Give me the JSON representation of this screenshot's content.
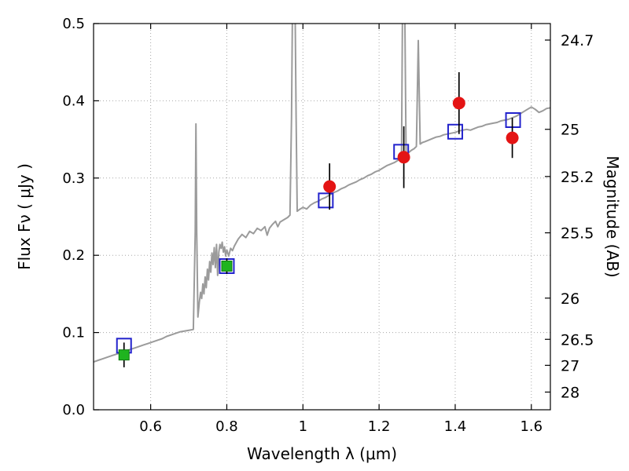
{
  "chart_data": {
    "type": "line",
    "title": "",
    "xlabel": "Wavelength  λ (μm)",
    "ylabel": "Flux  Fν  ( μJy )",
    "xlim": [
      0.45,
      1.65
    ],
    "ylim": [
      0.0,
      0.5
    ],
    "grid": true,
    "x_ticks": [
      0.6,
      0.8,
      1.0,
      1.2,
      1.4,
      1.6
    ],
    "x_tick_labels": [
      "0.6",
      "0.8",
      "1",
      "1.2",
      "1.4",
      "1.6"
    ],
    "y_ticks": [
      0.0,
      0.1,
      0.2,
      0.3,
      0.4,
      0.5
    ],
    "y_tick_labels": [
      "0.0",
      "0.1",
      "0.2",
      "0.3",
      "0.4",
      "0.5"
    ],
    "right_axis": {
      "label": "Magnitude (AB)",
      "mag_zeropoint": 23.9,
      "tick_magnitudes": [
        24.7,
        25,
        25.2,
        25.5,
        26,
        26.5,
        27,
        28
      ],
      "tick_labels": [
        "24.7",
        "25",
        "25.2",
        "25.5",
        "26",
        "26.5",
        "27",
        "28"
      ]
    },
    "series": [
      {
        "name": "model-spectrum",
        "type": "line",
        "color": "#9b9b9b",
        "width": 2,
        "points": [
          [
            0.45,
            0.062
          ],
          [
            0.462,
            0.064
          ],
          [
            0.474,
            0.066
          ],
          [
            0.486,
            0.068
          ],
          [
            0.498,
            0.07
          ],
          [
            0.51,
            0.072
          ],
          [
            0.522,
            0.074
          ],
          [
            0.534,
            0.076
          ],
          [
            0.546,
            0.078
          ],
          [
            0.558,
            0.08
          ],
          [
            0.57,
            0.082
          ],
          [
            0.582,
            0.084
          ],
          [
            0.594,
            0.086
          ],
          [
            0.606,
            0.088
          ],
          [
            0.618,
            0.09
          ],
          [
            0.63,
            0.092
          ],
          [
            0.642,
            0.095
          ],
          [
            0.654,
            0.097
          ],
          [
            0.666,
            0.099
          ],
          [
            0.678,
            0.101
          ],
          [
            0.69,
            0.102
          ],
          [
            0.702,
            0.103
          ],
          [
            0.712,
            0.104
          ],
          [
            0.717,
            0.23
          ],
          [
            0.719,
            0.37
          ],
          [
            0.721,
            0.23
          ],
          [
            0.724,
            0.12
          ],
          [
            0.728,
            0.14
          ],
          [
            0.731,
            0.152
          ],
          [
            0.734,
            0.144
          ],
          [
            0.737,
            0.163
          ],
          [
            0.74,
            0.15
          ],
          [
            0.743,
            0.172
          ],
          [
            0.746,
            0.158
          ],
          [
            0.749,
            0.182
          ],
          [
            0.752,
            0.168
          ],
          [
            0.755,
            0.192
          ],
          [
            0.758,
            0.178
          ],
          [
            0.761,
            0.203
          ],
          [
            0.764,
            0.188
          ],
          [
            0.767,
            0.21
          ],
          [
            0.77,
            0.184
          ],
          [
            0.773,
            0.214
          ],
          [
            0.776,
            0.174
          ],
          [
            0.779,
            0.204
          ],
          [
            0.782,
            0.214
          ],
          [
            0.785,
            0.209
          ],
          [
            0.788,
            0.217
          ],
          [
            0.791,
            0.204
          ],
          [
            0.794,
            0.211
          ],
          [
            0.797,
            0.199
          ],
          [
            0.8,
            0.207
          ],
          [
            0.805,
            0.199
          ],
          [
            0.81,
            0.209
          ],
          [
            0.815,
            0.206
          ],
          [
            0.82,
            0.212
          ],
          [
            0.83,
            0.221
          ],
          [
            0.84,
            0.227
          ],
          [
            0.85,
            0.223
          ],
          [
            0.86,
            0.231
          ],
          [
            0.87,
            0.228
          ],
          [
            0.88,
            0.235
          ],
          [
            0.89,
            0.232
          ],
          [
            0.9,
            0.237
          ],
          [
            0.906,
            0.226
          ],
          [
            0.912,
            0.235
          ],
          [
            0.92,
            0.24
          ],
          [
            0.928,
            0.244
          ],
          [
            0.934,
            0.237
          ],
          [
            0.94,
            0.243
          ],
          [
            0.95,
            0.246
          ],
          [
            0.96,
            0.249
          ],
          [
            0.966,
            0.252
          ],
          [
            0.97,
            0.38
          ],
          [
            0.973,
            0.545
          ],
          [
            0.979,
            0.545
          ],
          [
            0.982,
            0.38
          ],
          [
            0.985,
            0.257
          ],
          [
            0.99,
            0.259
          ],
          [
            1.0,
            0.262
          ],
          [
            1.01,
            0.26
          ],
          [
            1.02,
            0.265
          ],
          [
            1.03,
            0.268
          ],
          [
            1.04,
            0.27
          ],
          [
            1.05,
            0.273
          ],
          [
            1.06,
            0.275
          ],
          [
            1.07,
            0.278
          ],
          [
            1.08,
            0.281
          ],
          [
            1.09,
            0.283
          ],
          [
            1.1,
            0.286
          ],
          [
            1.11,
            0.288
          ],
          [
            1.12,
            0.291
          ],
          [
            1.13,
            0.293
          ],
          [
            1.14,
            0.295
          ],
          [
            1.15,
            0.298
          ],
          [
            1.16,
            0.3
          ],
          [
            1.17,
            0.303
          ],
          [
            1.18,
            0.305
          ],
          [
            1.19,
            0.308
          ],
          [
            1.2,
            0.31
          ],
          [
            1.21,
            0.313
          ],
          [
            1.22,
            0.316
          ],
          [
            1.23,
            0.318
          ],
          [
            1.24,
            0.32
          ],
          [
            1.25,
            0.323
          ],
          [
            1.256,
            0.326
          ],
          [
            1.259,
            0.33
          ],
          [
            1.262,
            0.545
          ],
          [
            1.267,
            0.545
          ],
          [
            1.271,
            0.33
          ],
          [
            1.278,
            0.333
          ],
          [
            1.285,
            0.336
          ],
          [
            1.292,
            0.338
          ],
          [
            1.298,
            0.341
          ],
          [
            1.303,
            0.478
          ],
          [
            1.308,
            0.344
          ],
          [
            1.314,
            0.346
          ],
          [
            1.32,
            0.347
          ],
          [
            1.33,
            0.349
          ],
          [
            1.34,
            0.351
          ],
          [
            1.35,
            0.353
          ],
          [
            1.36,
            0.354
          ],
          [
            1.37,
            0.356
          ],
          [
            1.38,
            0.357
          ],
          [
            1.39,
            0.358
          ],
          [
            1.4,
            0.359
          ],
          [
            1.41,
            0.361
          ],
          [
            1.42,
            0.362
          ],
          [
            1.43,
            0.363
          ],
          [
            1.44,
            0.362
          ],
          [
            1.45,
            0.364
          ],
          [
            1.46,
            0.366
          ],
          [
            1.47,
            0.367
          ],
          [
            1.48,
            0.369
          ],
          [
            1.49,
            0.37
          ],
          [
            1.5,
            0.371
          ],
          [
            1.51,
            0.372
          ],
          [
            1.52,
            0.374
          ],
          [
            1.53,
            0.375
          ],
          [
            1.54,
            0.376
          ],
          [
            1.55,
            0.378
          ],
          [
            1.56,
            0.38
          ],
          [
            1.57,
            0.383
          ],
          [
            1.58,
            0.386
          ],
          [
            1.59,
            0.389
          ],
          [
            1.6,
            0.392
          ],
          [
            1.61,
            0.389
          ],
          [
            1.62,
            0.385
          ],
          [
            1.63,
            0.387
          ],
          [
            1.64,
            0.39
          ],
          [
            1.65,
            0.391
          ]
        ]
      },
      {
        "name": "model-photometry",
        "type": "scatter",
        "marker": "open-square",
        "color": "#2222cc",
        "size": 18,
        "x": [
          0.53,
          0.8,
          1.06,
          1.258,
          1.4,
          1.552
        ],
        "y": [
          0.083,
          0.186,
          0.271,
          0.334,
          0.36,
          0.375
        ]
      },
      {
        "name": "observed-photometry-green",
        "type": "scatter",
        "marker": "filled-square",
        "color": "#1fb41f",
        "edge": "#0e7a0e",
        "size": 13,
        "errorbar_color": "#000000",
        "x": [
          0.53,
          0.8
        ],
        "y": [
          0.071,
          0.186
        ],
        "yerr": [
          0.016,
          0.01
        ]
      },
      {
        "name": "observed-photometry-red",
        "type": "scatter",
        "marker": "circle",
        "color": "#e41414",
        "size": 16,
        "errorbar_color": "#000000",
        "x": [
          1.07,
          1.265,
          1.41,
          1.55
        ],
        "y": [
          0.289,
          0.327,
          0.397,
          0.352
        ],
        "yerr": [
          0.03,
          0.04,
          0.04,
          0.026
        ]
      }
    ]
  }
}
